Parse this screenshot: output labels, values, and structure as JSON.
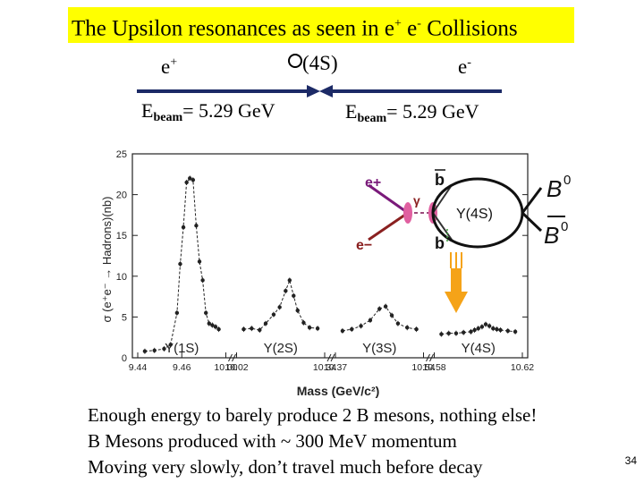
{
  "slide": {
    "title_main": "The Upsilon resonances as seen in e",
    "title_sup1": "+",
    "title_mid": " e",
    "title_sup2": "-",
    "title_end": " Collisions",
    "positron_label": "e",
    "positron_charge": "+",
    "electron_label": "e",
    "electron_charge": "-",
    "resonance_label": "(4S)",
    "beam_left": {
      "e": "E",
      "sub": "beam",
      "value": "= 5.29 GeV"
    },
    "beam_right": {
      "e": "E",
      "sub": "beam",
      "value": "= 5.29 GeV"
    },
    "notes": [
      "Enough energy to barely produce 2 B mesons, nothing else!",
      "B Mesons produced with ~ 300 MeV momentum",
      "Moving very slowly, don’t travel much before decay"
    ],
    "page_number": "34"
  },
  "diagram": {
    "e_plus": "e+",
    "e_minus": "e−",
    "gamma": "γ",
    "upsilon": "Υ(4S)",
    "b": "b",
    "bbar": "b",
    "B0": "B",
    "B0_sup": "0",
    "B0bar": "B",
    "B0bar_sup": "0"
  },
  "chart_data": {
    "type": "scatter",
    "xlabel": "Mass (GeV/c²)",
    "ylabel": "σ (e⁺e⁻ → Hadrons)(nb)",
    "ylim": [
      0,
      25
    ],
    "yticks": [
      0,
      5,
      10,
      15,
      20,
      25
    ],
    "grid": false,
    "panels": [
      {
        "label": "Υ(1S)",
        "xticks": [
          "9.44",
          "9.46",
          "10.00"
        ]
      },
      {
        "label": "Υ(2S)",
        "xticks": [
          "10.02",
          "10.34"
        ]
      },
      {
        "label": "Υ(3S)",
        "xticks": [
          "10.37",
          "10.54"
        ]
      },
      {
        "label": "Υ(4S)",
        "xticks": [
          "10.58",
          "10.62"
        ]
      }
    ],
    "series": [
      {
        "panel": 0,
        "points": [
          [
            9.43,
            0.8
          ],
          [
            9.436,
            0.9
          ],
          [
            9.442,
            1.1
          ],
          [
            9.446,
            1.6
          ],
          [
            9.45,
            5.5
          ],
          [
            9.452,
            11.5
          ],
          [
            9.454,
            16.0
          ],
          [
            9.456,
            21.5
          ],
          [
            9.458,
            22.0
          ],
          [
            9.46,
            21.8
          ],
          [
            9.462,
            16.2
          ],
          [
            9.464,
            11.8
          ],
          [
            9.466,
            9.5
          ],
          [
            9.468,
            5.5
          ],
          [
            9.47,
            4.2
          ],
          [
            9.472,
            4.0
          ],
          [
            9.474,
            3.8
          ],
          [
            9.476,
            3.5
          ]
        ]
      },
      {
        "panel": 1,
        "points": [
          [
            10.001,
            3.5
          ],
          [
            10.005,
            3.6
          ],
          [
            10.009,
            3.4
          ],
          [
            10.012,
            4.2
          ],
          [
            10.016,
            5.3
          ],
          [
            10.019,
            6.2
          ],
          [
            10.022,
            8.2
          ],
          [
            10.024,
            9.5
          ],
          [
            10.026,
            7.6
          ],
          [
            10.028,
            5.8
          ],
          [
            10.031,
            4.3
          ],
          [
            10.034,
            3.7
          ],
          [
            10.038,
            3.6
          ]
        ]
      },
      {
        "panel": 2,
        "points": [
          [
            10.33,
            3.3
          ],
          [
            10.336,
            3.5
          ],
          [
            10.342,
            3.9
          ],
          [
            10.348,
            4.6
          ],
          [
            10.354,
            6.0
          ],
          [
            10.358,
            6.3
          ],
          [
            10.362,
            5.2
          ],
          [
            10.366,
            4.2
          ],
          [
            10.372,
            3.7
          ],
          [
            10.378,
            3.5
          ]
        ]
      },
      {
        "panel": 3,
        "points": [
          [
            10.52,
            2.9
          ],
          [
            10.53,
            3.0
          ],
          [
            10.54,
            3.0
          ],
          [
            10.55,
            3.1
          ],
          [
            10.56,
            3.2
          ],
          [
            10.565,
            3.4
          ],
          [
            10.57,
            3.6
          ],
          [
            10.575,
            3.8
          ],
          [
            10.58,
            4.1
          ],
          [
            10.585,
            3.9
          ],
          [
            10.59,
            3.6
          ],
          [
            10.595,
            3.5
          ],
          [
            10.6,
            3.4
          ],
          [
            10.61,
            3.3
          ],
          [
            10.62,
            3.2
          ]
        ]
      }
    ]
  },
  "colors": {
    "title_highlight": "#ffff00",
    "beam_arrow": "#1c2a66",
    "e_plus": "#7a1a7a",
    "e_minus": "#8a2020",
    "vertex": "#e060a0",
    "decay_arrow": "#f5a318",
    "dashed_link": "#3a9a3a",
    "plot": "#222222"
  }
}
